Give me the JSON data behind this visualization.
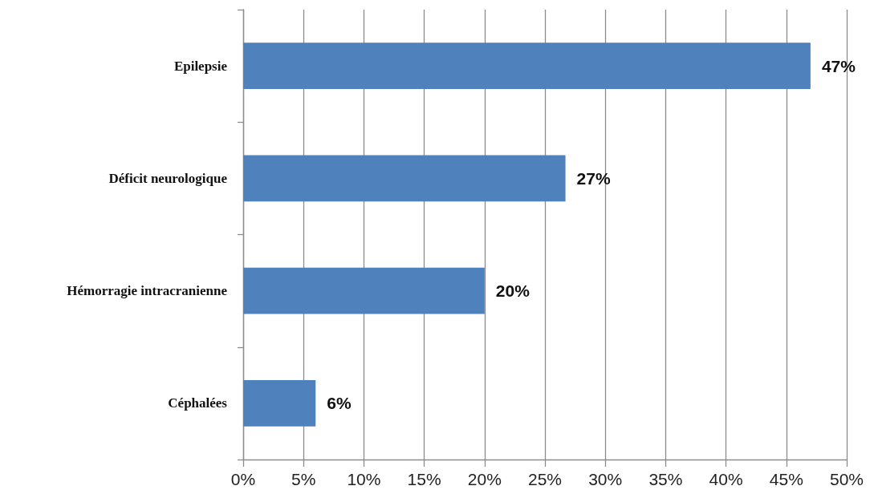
{
  "chart_data": {
    "type": "bar",
    "orientation": "horizontal",
    "categories": [
      "Epilepsie",
      "Déficit neurologique",
      "Hémorragie intracranienne",
      "Céphalées"
    ],
    "values": [
      47,
      26.7,
      20,
      6
    ],
    "value_labels": [
      "47%",
      "27%",
      "20%",
      "6%"
    ],
    "color": "#4f81bd",
    "xlim": [
      0,
      50
    ],
    "xticks": [
      {
        "value": 0,
        "label": "0%"
      },
      {
        "value": 5,
        "label": "5%"
      },
      {
        "value": 10,
        "label": "10%"
      },
      {
        "value": 15,
        "label": "15%"
      },
      {
        "value": 20,
        "label": "20%"
      },
      {
        "value": 25,
        "label": "25%"
      },
      {
        "value": 30,
        "label": "30%"
      },
      {
        "value": 35,
        "label": "35%"
      },
      {
        "value": 40,
        "label": "40%"
      },
      {
        "value": 45,
        "label": "45%"
      },
      {
        "value": 50,
        "label": "50%"
      }
    ],
    "grid": "x"
  }
}
